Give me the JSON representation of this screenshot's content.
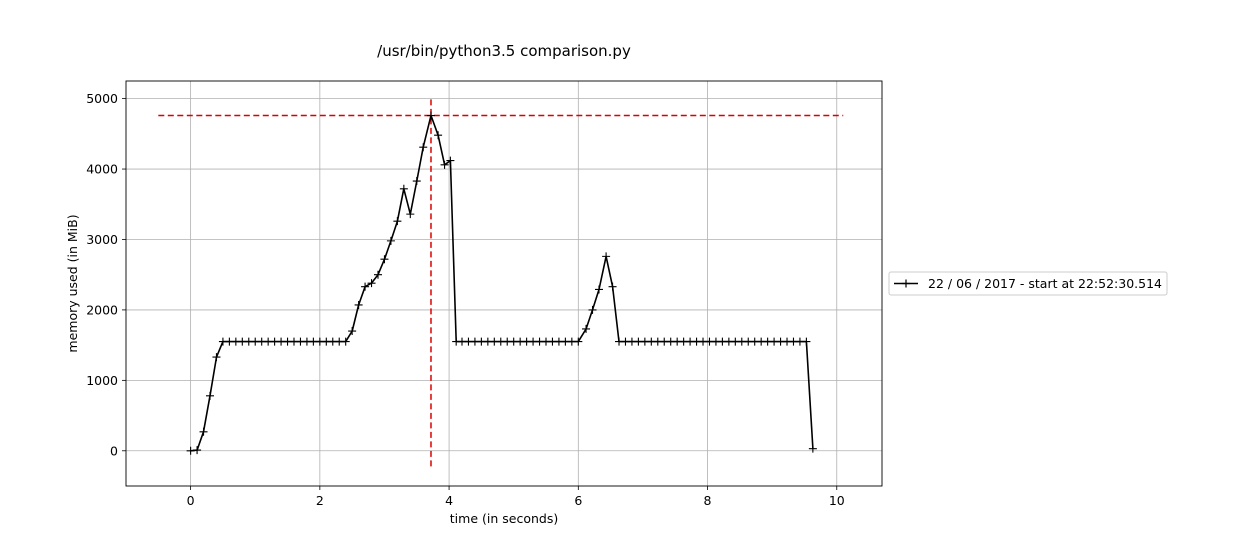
{
  "chart_data": {
    "type": "line",
    "title": "/usr/bin/python3.5 comparison.py",
    "xlabel": "time (in seconds)",
    "ylabel": "memory used (in MiB)",
    "xlim": [
      -1,
      10.7
    ],
    "ylim": [
      -500,
      5250
    ],
    "xticks": [
      0,
      2,
      4,
      6,
      8,
      10
    ],
    "yticks": [
      0,
      1000,
      2000,
      3000,
      4000,
      5000
    ],
    "xtick_labels": [
      "0",
      "2",
      "4",
      "6",
      "8",
      "10"
    ],
    "ytick_labels": [
      "0",
      "1000",
      "2000",
      "3000",
      "4000",
      "5000"
    ],
    "grid": true,
    "legend_position": "outside-right",
    "series": [
      {
        "name": "22 / 06 / 2017 - start at 22:52:30.514",
        "color": "#000000",
        "marker": "plus",
        "x": [
          0.0,
          0.1,
          0.2,
          0.3,
          0.4,
          0.5,
          0.6,
          0.7,
          0.8,
          0.9,
          1.0,
          1.1,
          1.2,
          1.3,
          1.4,
          1.5,
          1.6,
          1.7,
          1.8,
          1.9,
          2.0,
          2.1,
          2.2,
          2.3,
          2.4,
          2.5,
          2.6,
          2.7,
          2.8,
          2.9,
          3.0,
          3.1,
          3.2,
          3.3,
          3.4,
          3.5,
          3.6,
          3.72,
          3.83,
          3.93,
          4.02,
          4.11,
          4.2,
          4.3,
          4.4,
          4.5,
          4.6,
          4.7,
          4.8,
          4.9,
          5.0,
          5.1,
          5.2,
          5.3,
          5.4,
          5.5,
          5.6,
          5.7,
          5.8,
          5.9,
          6.0,
          6.12,
          6.22,
          6.32,
          6.43,
          6.53,
          6.63,
          6.73,
          6.83,
          6.93,
          7.03,
          7.13,
          7.23,
          7.33,
          7.43,
          7.53,
          7.63,
          7.73,
          7.83,
          7.93,
          8.03,
          8.13,
          8.23,
          8.33,
          8.43,
          8.53,
          8.63,
          8.73,
          8.83,
          8.93,
          9.03,
          9.13,
          9.23,
          9.33,
          9.43,
          9.53,
          9.63
        ],
        "y": [
          0,
          10,
          270,
          780,
          1330,
          1550,
          1550,
          1550,
          1550,
          1550,
          1550,
          1550,
          1550,
          1550,
          1550,
          1550,
          1550,
          1550,
          1550,
          1550,
          1550,
          1550,
          1550,
          1550,
          1550,
          1700,
          2070,
          2330,
          2380,
          2500,
          2720,
          2980,
          3260,
          3720,
          3360,
          3830,
          4310,
          4760,
          4480,
          4060,
          4120,
          1550,
          1550,
          1550,
          1550,
          1550,
          1550,
          1550,
          1550,
          1550,
          1550,
          1550,
          1550,
          1550,
          1550,
          1550,
          1550,
          1550,
          1550,
          1550,
          1550,
          1730,
          2000,
          2290,
          2760,
          2330,
          1550,
          1550,
          1550,
          1550,
          1550,
          1550,
          1550,
          1550,
          1550,
          1550,
          1550,
          1550,
          1550,
          1550,
          1550,
          1550,
          1550,
          1550,
          1550,
          1550,
          1550,
          1550,
          1550,
          1550,
          1550,
          1550,
          1550,
          1550,
          1550,
          1550,
          30
        ]
      }
    ],
    "reference_lines": [
      {
        "orientation": "horizontal",
        "y": 4760,
        "x_from": -0.5,
        "x_to": 10.1,
        "color": "#dd0000",
        "style": "dashed"
      },
      {
        "orientation": "vertical",
        "x": 3.72,
        "y_from": -230,
        "y_to": 4990,
        "color": "#dd0000",
        "style": "dashed"
      }
    ]
  }
}
